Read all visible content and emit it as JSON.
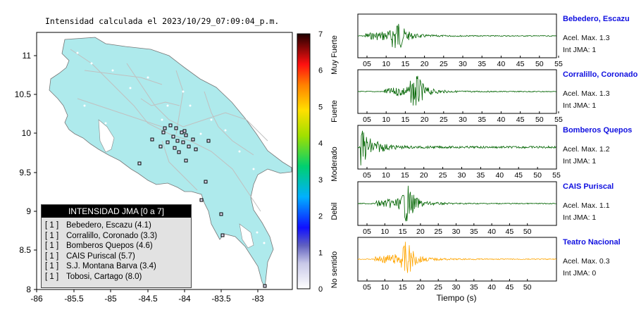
{
  "map": {
    "title": "Intensidad calculada el 2023/10/29_07:09:04_p.m.",
    "x_ticks": [
      "-86",
      "-85.5",
      "-85",
      "-84.5",
      "-84",
      "-83.5",
      "-83"
    ],
    "y_ticks": [
      "11",
      "10.5",
      "10",
      "9.5",
      "9",
      "8.5",
      "8"
    ],
    "land_color": "#aeeaec",
    "road_color": "#c8c8c8"
  },
  "colorbar": {
    "ticks": [
      "0",
      "1",
      "2",
      "3",
      "4",
      "5",
      "6",
      "7"
    ],
    "labels": [
      "No sentido",
      "Debil",
      "Moderado",
      "Fuerte",
      "Muy Fuerte"
    ]
  },
  "legend": {
    "header": "INTENSIDAD JMA [0 a 7]",
    "items": [
      {
        "level": "[ 1 ]",
        "text": "Bebedero, Escazu (4.1)"
      },
      {
        "level": "[ 1 ]",
        "text": "Corralillo, Coronado (3.3)"
      },
      {
        "level": "[ 1 ]",
        "text": "Bomberos Quepos (4.6)"
      },
      {
        "level": "[ 1 ]",
        "text": "CAIS Puriscal (5.7)"
      },
      {
        "level": "[ 1 ]",
        "text": "S.J. Montana Barva (3.4)"
      },
      {
        "level": "[ 1 ]",
        "text": "Tobosi, Cartago (8.0)"
      }
    ]
  },
  "stations": [
    {
      "name": "Bebedero, Escazu",
      "acc": "Acel. Max. 1.3",
      "int": "Int JMA: 1",
      "color": "#006400",
      "ticks": [
        "05",
        "10",
        "15",
        "20",
        "25",
        "30",
        "35",
        "40",
        "45",
        "50",
        "55"
      ]
    },
    {
      "name": "Corralillo, Coronado",
      "acc": "Acel. Max. 1.3",
      "int": "Int JMA: 1",
      "color": "#006400",
      "ticks": [
        "05",
        "10",
        "15",
        "20",
        "25",
        "30",
        "35",
        "40",
        "45",
        "50",
        "55"
      ]
    },
    {
      "name": "Bomberos Quepos",
      "acc": "Acel. Max. 1.2",
      "int": "Int JMA: 1",
      "color": "#006400",
      "ticks": [
        "05",
        "10",
        "15",
        "20",
        "25",
        "30",
        "35",
        "40",
        "45",
        "50",
        "55"
      ]
    },
    {
      "name": "CAIS Puriscal",
      "acc": "Acel. Max. 1.1",
      "int": "Int JMA: 1",
      "color": "#006400",
      "ticks": [
        "05",
        "10",
        "15",
        "20",
        "25",
        "30",
        "35",
        "40",
        "45",
        "50"
      ]
    },
    {
      "name": "Teatro Nacional",
      "acc": "Acel. Max. 0.3",
      "int": "Int JMA: 0",
      "color": "#ffa500",
      "ticks": [
        "05",
        "10",
        "15",
        "20",
        "25",
        "30",
        "35",
        "40",
        "45",
        "50"
      ]
    }
  ],
  "xlabel": "Tiempo (s)"
}
